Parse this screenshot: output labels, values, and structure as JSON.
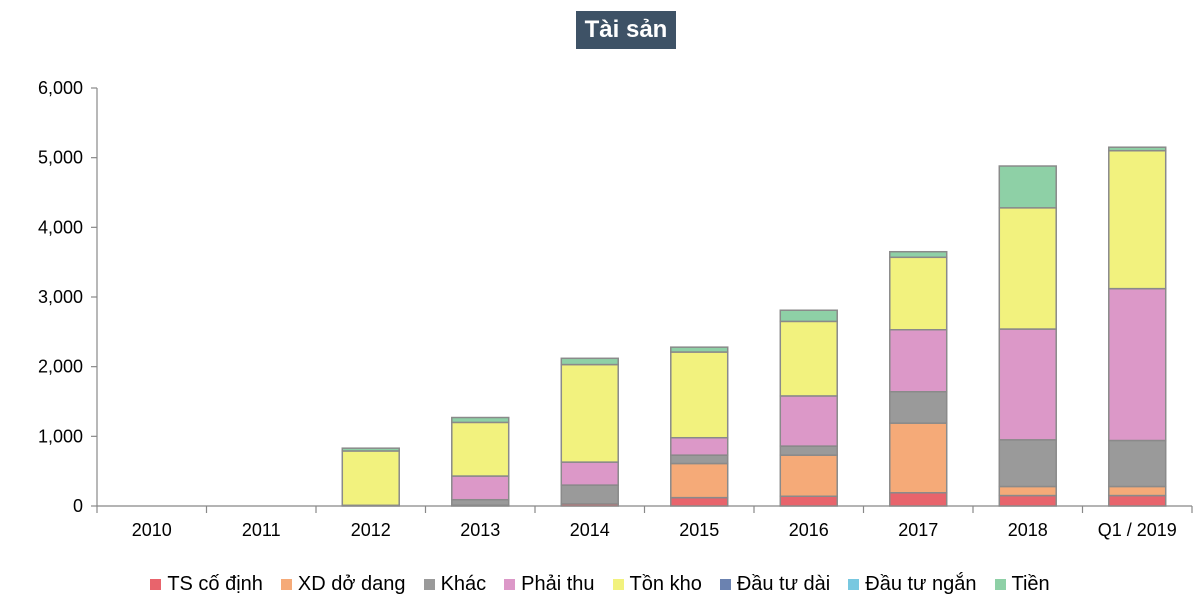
{
  "chart_data": {
    "type": "bar",
    "stacked": true,
    "title": "Tài sản",
    "xlabel": "",
    "ylabel": "",
    "ylim": [
      0,
      6000
    ],
    "yticks": [
      "0",
      "1,000",
      "2,000",
      "3,000",
      "4,000",
      "5,000",
      "6,000"
    ],
    "ytick_values": [
      0,
      1000,
      2000,
      3000,
      4000,
      5000,
      6000
    ],
    "grid": false,
    "legend_position": "bottom",
    "categories": [
      "2010",
      "2011",
      "2012",
      "2013",
      "2014",
      "2015",
      "2016",
      "2017",
      "2018",
      "Q1 / 2019"
    ],
    "series": [
      {
        "name": "TS cố định",
        "color": "#e8646c",
        "values": [
          0,
          0,
          0,
          10,
          30,
          120,
          140,
          190,
          150,
          150
        ]
      },
      {
        "name": "XD dở dang",
        "color": "#f5aa78",
        "values": [
          0,
          0,
          0,
          0,
          0,
          490,
          590,
          1000,
          130,
          130
        ]
      },
      {
        "name": "Khác",
        "color": "#9a9a9a",
        "values": [
          0,
          0,
          10,
          80,
          270,
          120,
          130,
          450,
          670,
          660
        ]
      },
      {
        "name": "Phải thu",
        "color": "#dc98c8",
        "values": [
          0,
          0,
          0,
          340,
          330,
          250,
          720,
          890,
          1590,
          2180
        ]
      },
      {
        "name": "Tồn kho",
        "color": "#f2f27e",
        "values": [
          0,
          0,
          780,
          770,
          1400,
          1230,
          1070,
          1040,
          1740,
          1980
        ]
      },
      {
        "name": "Đầu tư dài",
        "color": "#6b82b0",
        "values": [
          0,
          0,
          0,
          0,
          0,
          0,
          0,
          0,
          0,
          0
        ]
      },
      {
        "name": "Đầu tư ngắn",
        "color": "#78c8e0",
        "values": [
          0,
          0,
          0,
          0,
          0,
          0,
          0,
          0,
          0,
          0
        ]
      },
      {
        "name": "Tiền",
        "color": "#8ed0a6",
        "values": [
          0,
          0,
          40,
          70,
          90,
          70,
          160,
          80,
          600,
          50
        ]
      }
    ]
  }
}
